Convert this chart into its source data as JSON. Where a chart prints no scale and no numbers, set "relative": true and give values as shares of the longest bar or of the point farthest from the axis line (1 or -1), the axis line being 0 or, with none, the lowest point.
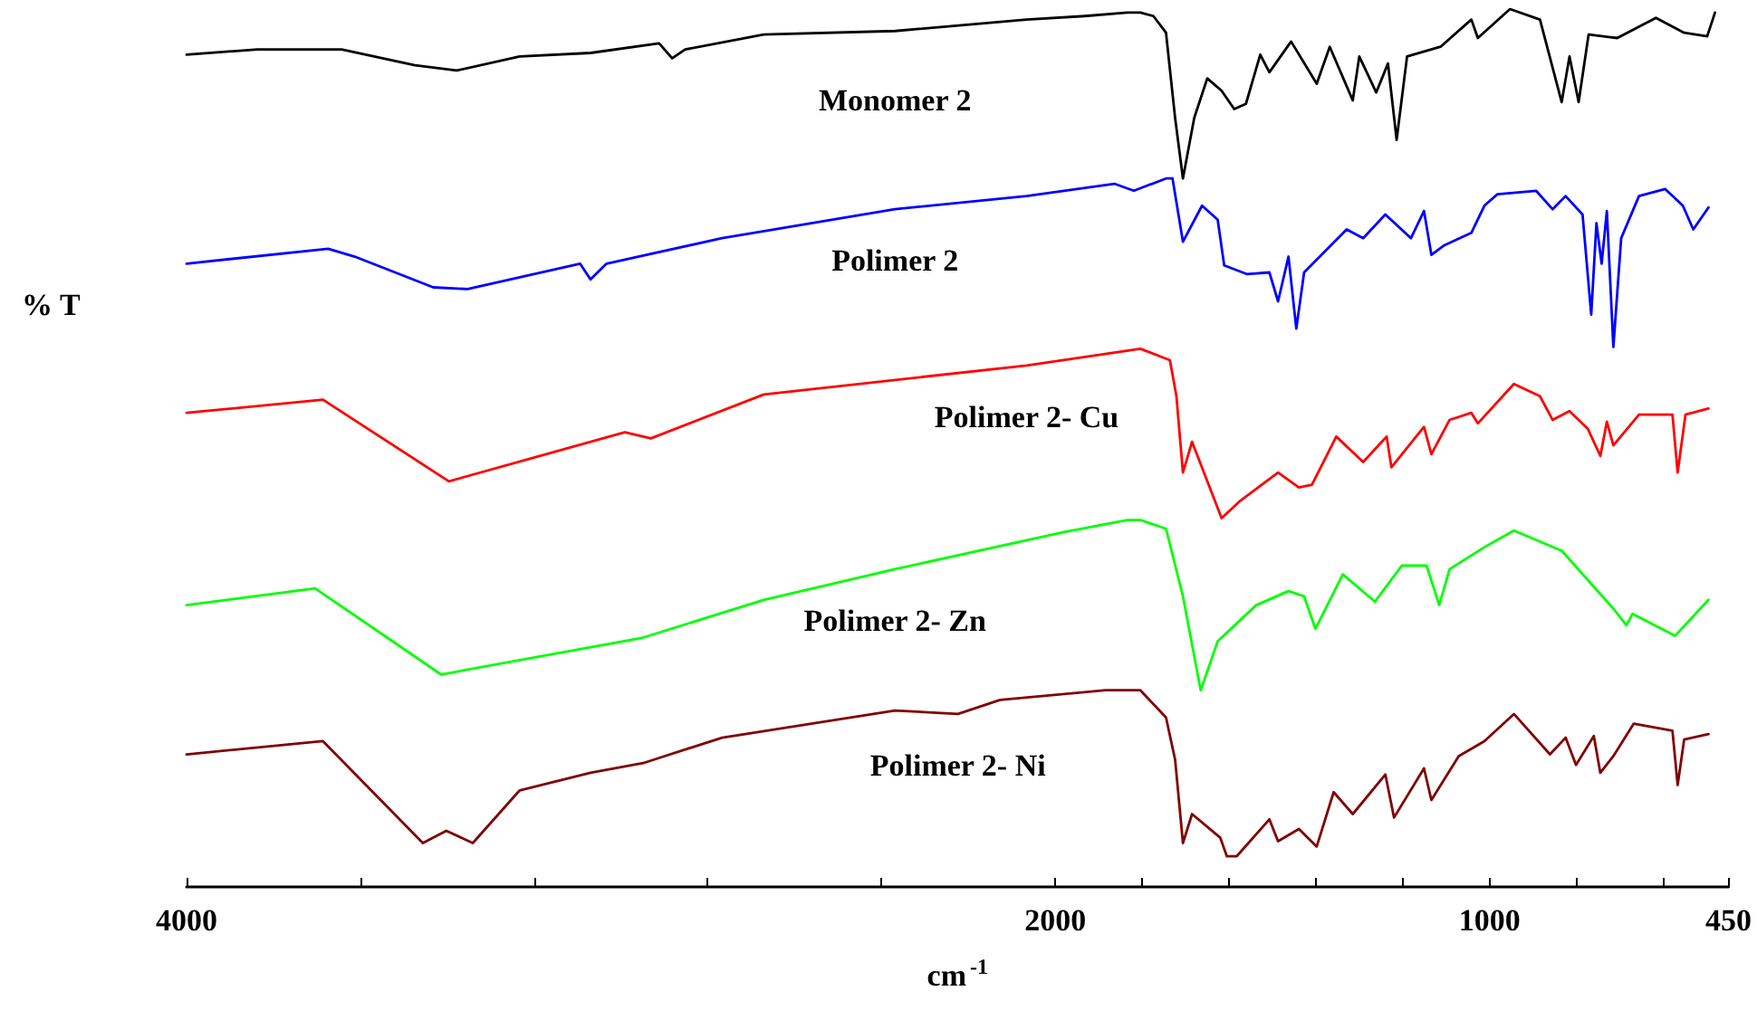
{
  "chart_data": {
    "type": "line",
    "relative": true,
    "xlabel": "cm$^{-1}$",
    "ylabel": "% T",
    "xlim": [
      4000,
      450
    ],
    "xticks": [
      4000,
      {
        "value": 3600,
        "label": null
      },
      {
        "value": 3200,
        "label": null
      },
      {
        "value": 2800,
        "label": null
      },
      {
        "value": 2400,
        "label": null
      },
      2000,
      {
        "value": 1800,
        "label": null
      },
      {
        "value": 1600,
        "label": null
      },
      {
        "value": 1400,
        "label": null
      },
      {
        "value": 1200,
        "label": null
      },
      1000,
      {
        "value": 800,
        "label": null
      },
      {
        "value": 600,
        "label": null
      },
      450
    ],
    "legend": false,
    "grid": false,
    "series": [
      {
        "name": "Monomer 2",
        "color": "#000000",
        "x": [
          4000,
          3837,
          3643,
          3474,
          3378,
          3233,
          3070,
          2912,
          2882,
          2852,
          2671,
          2369,
          2066,
          1932,
          1834,
          1804,
          1774,
          1745,
          1724,
          1706,
          1680,
          1650,
          1617,
          1588,
          1561,
          1528,
          1507,
          1457,
          1398,
          1368,
          1315,
          1300,
          1261,
          1234,
          1214,
          1190,
          1113,
          1042,
          1027,
          953,
          884,
          834,
          816,
          795,
          772,
          706,
          617,
          552,
          499,
          481
        ],
        "values": [
          0.948,
          0.954,
          0.954,
          0.936,
          0.93,
          0.946,
          0.95,
          0.961,
          0.944,
          0.954,
          0.971,
          0.975,
          0.988,
          0.992,
          0.996,
          0.996,
          0.992,
          0.973,
          0.876,
          0.807,
          0.876,
          0.921,
          0.907,
          0.886,
          0.892,
          0.948,
          0.928,
          0.963,
          0.915,
          0.957,
          0.896,
          0.946,
          0.905,
          0.938,
          0.851,
          0.946,
          0.957,
          0.988,
          0.967,
          1.0,
          0.988,
          0.894,
          0.946,
          0.894,
          0.971,
          0.967,
          0.99,
          0.973,
          0.969,
          0.996
        ]
      },
      {
        "name": "Polimer 2",
        "color": "#0000ff",
        "x": [
          4000,
          3674,
          3613,
          3432,
          3353,
          3094,
          3070,
          3033,
          2767,
          2369,
          2066,
          1864,
          1819,
          1745,
          1730,
          1706,
          1662,
          1626,
          1611,
          1558,
          1507,
          1487,
          1463,
          1445,
          1427,
          1329,
          1291,
          1240,
          1181,
          1151,
          1134,
          1104,
          1042,
          1012,
          982,
          893,
          855,
          825,
          786,
          766,
          754,
          742,
          730,
          715,
          697,
          656,
          596,
          555,
          531,
          496
        ],
        "values": [
          0.71,
          0.727,
          0.718,
          0.683,
          0.681,
          0.71,
          0.692,
          0.71,
          0.739,
          0.772,
          0.787,
          0.801,
          0.793,
          0.807,
          0.807,
          0.735,
          0.776,
          0.76,
          0.708,
          0.698,
          0.7,
          0.667,
          0.718,
          0.636,
          0.7,
          0.749,
          0.739,
          0.766,
          0.739,
          0.77,
          0.72,
          0.731,
          0.745,
          0.776,
          0.789,
          0.793,
          0.772,
          0.787,
          0.766,
          0.652,
          0.756,
          0.71,
          0.77,
          0.615,
          0.739,
          0.787,
          0.795,
          0.776,
          0.749,
          0.774
        ]
      },
      {
        "name": "Polimer 2- Cu",
        "color": "#ff0000",
        "x": [
          4000,
          3686,
          3396,
          2991,
          2931,
          2671,
          2066,
          1804,
          1736,
          1721,
          1706,
          1685,
          1617,
          1576,
          1487,
          1439,
          1409,
          1353,
          1291,
          1237,
          1226,
          1151,
          1134,
          1092,
          1042,
          1027,
          944,
          884,
          855,
          816,
          774,
          745,
          730,
          715,
          656,
          579,
          567,
          549,
          496
        ],
        "values": [
          0.54,
          0.555,
          0.462,
          0.518,
          0.511,
          0.561,
          0.594,
          0.613,
          0.6,
          0.559,
          0.472,
          0.507,
          0.42,
          0.439,
          0.472,
          0.455,
          0.458,
          0.513,
          0.484,
          0.513,
          0.478,
          0.524,
          0.493,
          0.532,
          0.54,
          0.528,
          0.573,
          0.559,
          0.532,
          0.542,
          0.522,
          0.491,
          0.53,
          0.503,
          0.538,
          0.538,
          0.472,
          0.538,
          0.545
        ]
      },
      {
        "name": "Polimer 2- Zn",
        "color": "#00ff00",
        "x": [
          4000,
          3704,
          3414,
          2949,
          2671,
          2369,
          1982,
          1834,
          1804,
          1745,
          1706,
          1665,
          1626,
          1537,
          1463,
          1427,
          1401,
          1338,
          1264,
          1202,
          1145,
          1116,
          1092,
          1012,
          944,
          834,
          715,
          685,
          671,
          573,
          496
        ],
        "values": [
          0.321,
          0.34,
          0.242,
          0.284,
          0.327,
          0.362,
          0.404,
          0.418,
          0.418,
          0.408,
          0.331,
          0.224,
          0.28,
          0.321,
          0.337,
          0.331,
          0.294,
          0.356,
          0.325,
          0.366,
          0.366,
          0.321,
          0.362,
          0.387,
          0.406,
          0.383,
          0.317,
          0.298,
          0.311,
          0.286,
          0.327
        ]
      },
      {
        "name": "Polimer 2- Ni",
        "color": "#800000",
        "x": [
          4000,
          3686,
          3456,
          3402,
          3341,
          3233,
          3070,
          2949,
          2767,
          2369,
          2224,
          2127,
          1884,
          1804,
          1745,
          1724,
          1706,
          1685,
          1620,
          1605,
          1582,
          1507,
          1487,
          1439,
          1398,
          1359,
          1315,
          1240,
          1220,
          1151,
          1134,
          1071,
          1012,
          944,
          861,
          825,
          801,
          760,
          745,
          715,
          668,
          579,
          567,
          552,
          496
        ],
        "values": [
          0.151,
          0.166,
          0.05,
          0.064,
          0.05,
          0.11,
          0.13,
          0.141,
          0.17,
          0.201,
          0.197,
          0.213,
          0.224,
          0.224,
          0.193,
          0.145,
          0.05,
          0.083,
          0.056,
          0.035,
          0.035,
          0.077,
          0.052,
          0.066,
          0.046,
          0.108,
          0.083,
          0.128,
          0.079,
          0.135,
          0.099,
          0.149,
          0.166,
          0.197,
          0.151,
          0.17,
          0.139,
          0.172,
          0.13,
          0.149,
          0.186,
          0.178,
          0.116,
          0.168,
          0.174
        ]
      }
    ]
  }
}
